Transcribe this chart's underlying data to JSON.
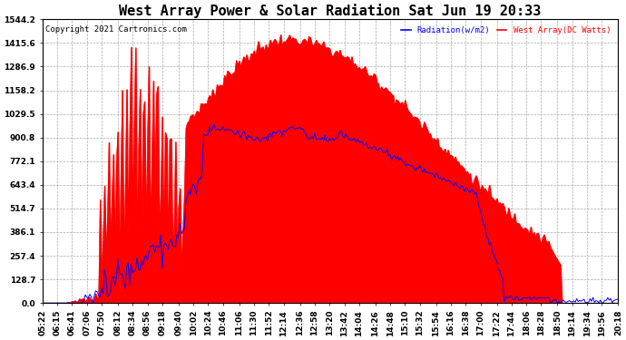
{
  "title": "West Array Power & Solar Radiation Sat Jun 19 20:33",
  "copyright": "Copyright 2021 Cartronics.com",
  "legend_radiation": "Radiation(w/m2)",
  "legend_west": "West Array(DC Watts)",
  "legend_radiation_color": "#0000ff",
  "legend_west_color": "#ff0000",
  "background_color": "#ffffff",
  "plot_bg_color": "#ffffff",
  "grid_color": "#aaaaaa",
  "fill_color": "#ff0000",
  "line_color_blue": "#0000ff",
  "ymin": 0.0,
  "ymax": 1544.2,
  "yticks": [
    0.0,
    128.7,
    257.4,
    386.1,
    514.7,
    643.4,
    772.1,
    900.8,
    1029.5,
    1158.2,
    1286.9,
    1415.6,
    1544.2
  ],
  "time_labels": [
    "05:22",
    "06:15",
    "06:41",
    "07:06",
    "07:50",
    "08:12",
    "08:34",
    "08:56",
    "09:18",
    "09:40",
    "10:02",
    "10:24",
    "10:46",
    "11:06",
    "11:30",
    "11:52",
    "12:14",
    "12:36",
    "12:58",
    "13:20",
    "13:42",
    "14:04",
    "14:26",
    "14:48",
    "15:10",
    "15:32",
    "15:54",
    "16:16",
    "16:38",
    "17:00",
    "17:22",
    "17:44",
    "18:06",
    "18:28",
    "18:50",
    "19:14",
    "19:34",
    "19:56",
    "20:18"
  ],
  "num_points": 390,
  "title_fontsize": 11,
  "axis_fontsize": 6.5,
  "copyright_fontsize": 6.5
}
